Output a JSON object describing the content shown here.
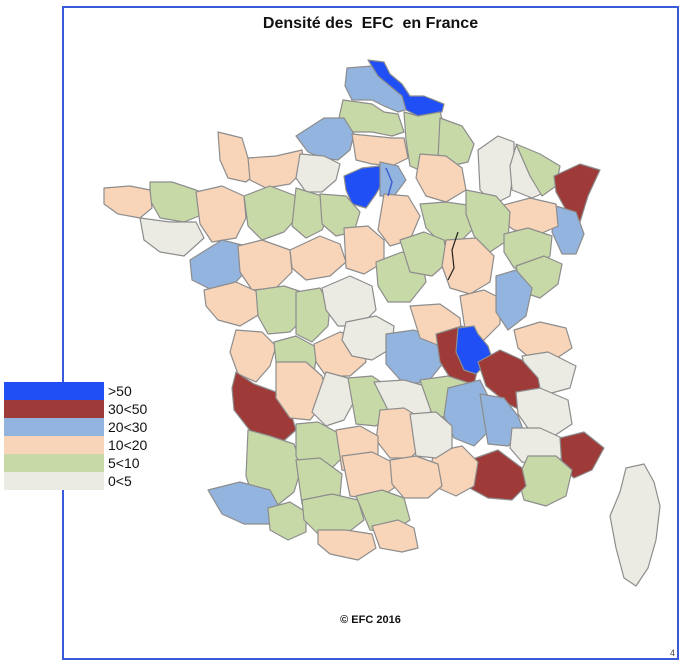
{
  "title": "Densité des  EFC  en France",
  "copyright": "© EFC  2016",
  "page_number": "4",
  "colors": {
    "c50": "#1f4ff5",
    "c30": "#9e3a38",
    "c20": "#93b4df",
    "c10": "#f8d4b8",
    "c5": "#c8d9a8",
    "c0": "#ecebe3",
    "frame": "#3a5bd9"
  },
  "legend": [
    {
      "label": ">50",
      "color": "#1f4ff5"
    },
    {
      "label": "30<50",
      "color": "#9e3a38"
    },
    {
      "label": "20<30",
      "color": "#93b4df"
    },
    {
      "label": "10<20",
      "color": "#f8d4b8"
    },
    {
      "label": "5<10",
      "color": "#c8d9a8"
    },
    {
      "label": "0<5",
      "color": "#ecebe3"
    }
  ]
}
